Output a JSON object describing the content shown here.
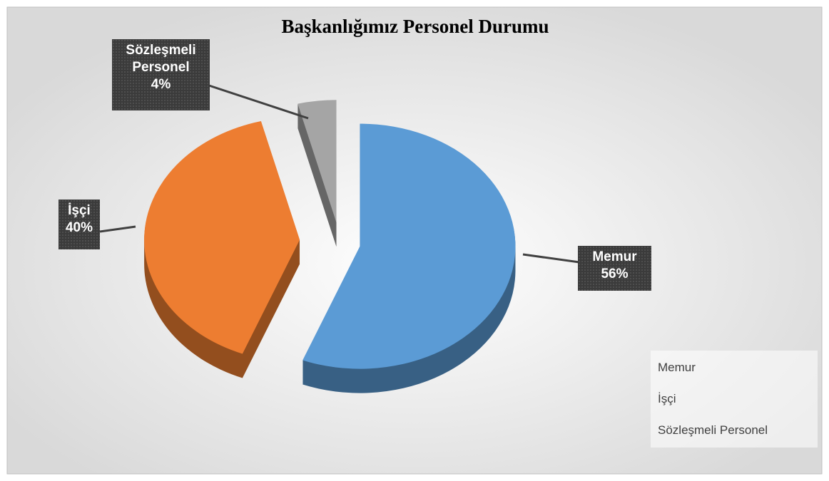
{
  "chart_data": {
    "type": "pie",
    "title": "Başkanlığımız Personel Durumu",
    "categories": [
      "Memur",
      "İşçi",
      "Sözleşmeli Personel"
    ],
    "values": [
      56,
      40,
      4
    ],
    "value_labels": [
      "56%",
      "40%",
      "4%"
    ],
    "colors": [
      "#5b9bd5",
      "#ed7d31",
      "#a5a5a5"
    ],
    "legend": "bottom-right"
  }
}
